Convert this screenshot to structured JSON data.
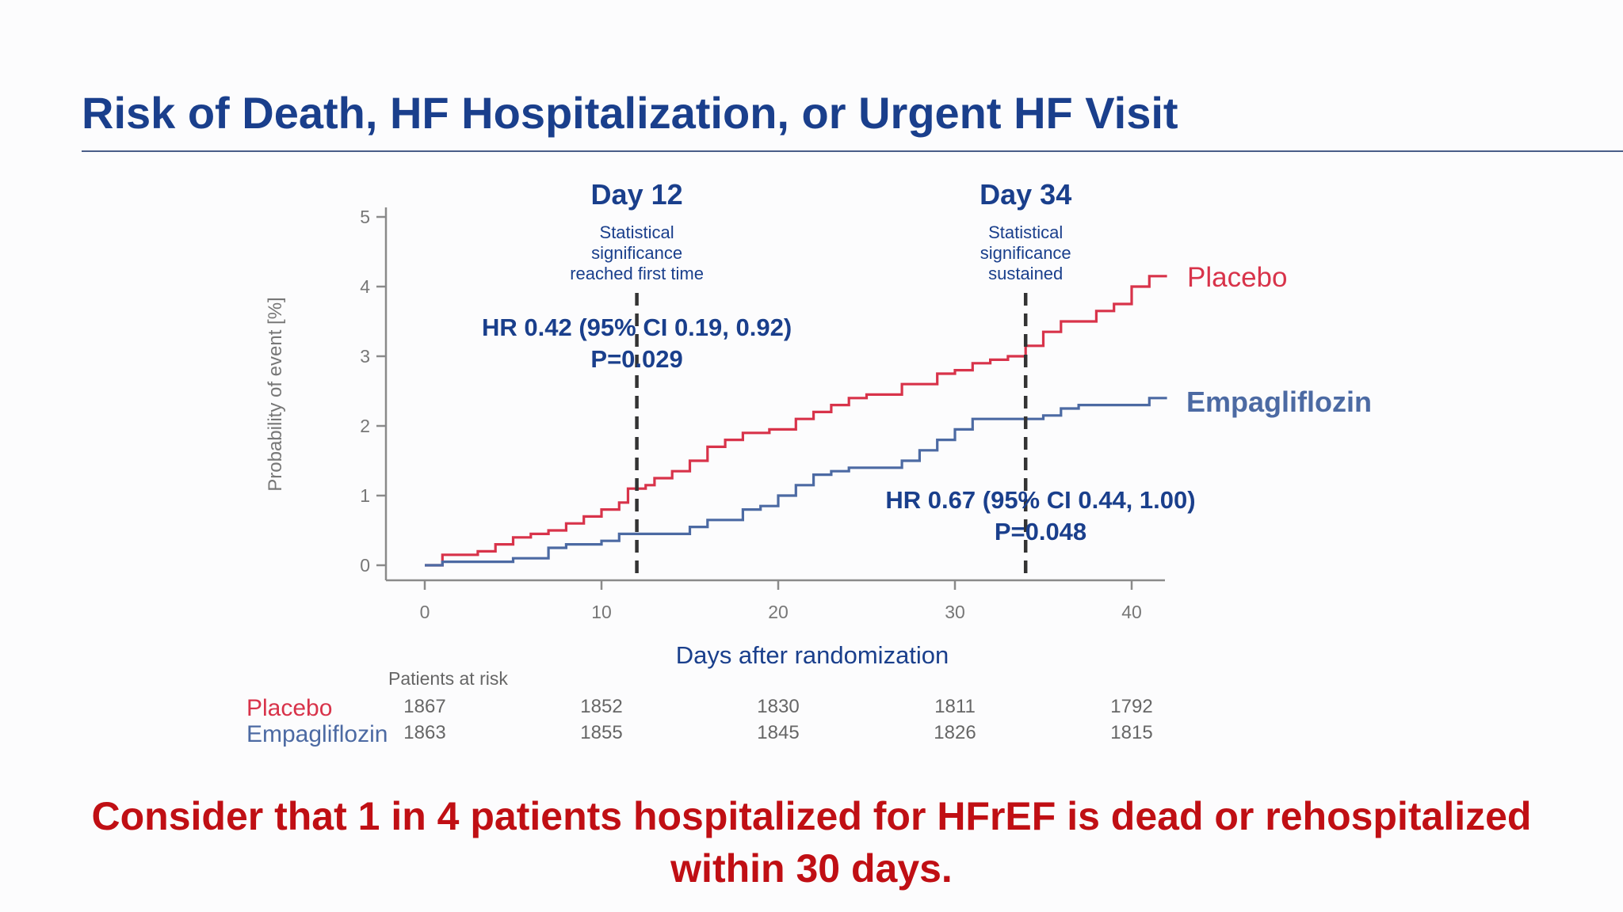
{
  "slide": {
    "title": "Risk of Death, HF Hospitalization, or Urgent HF Visit",
    "footer_line1": "Consider that 1 in 4 patients hospitalized for HFrEF is dead or rehospitalized",
    "footer_line2": "within 30 days."
  },
  "colors": {
    "title": "#1a3f8c",
    "placebo": "#d8334a",
    "empagliflozin": "#4c6aa3",
    "annotation": "#1a3f8c",
    "footer": "#c00f14",
    "axis": "#8a8a8a"
  },
  "chart_data": {
    "type": "line",
    "step": true,
    "xlabel": "Days after randomization",
    "ylabel": "Probability of event [%]",
    "xlim": [
      -2,
      42
    ],
    "ylim": [
      -0.2,
      5
    ],
    "xticks": [
      0,
      10,
      20,
      30,
      40
    ],
    "yticks": [
      0,
      1,
      2,
      3,
      4,
      5
    ],
    "grid": false,
    "series": [
      {
        "name": "Placebo",
        "color_key": "placebo",
        "points": [
          [
            0,
            0
          ],
          [
            1,
            0.15
          ],
          [
            3,
            0.2
          ],
          [
            4,
            0.3
          ],
          [
            5,
            0.4
          ],
          [
            6,
            0.45
          ],
          [
            7,
            0.5
          ],
          [
            8,
            0.6
          ],
          [
            9,
            0.7
          ],
          [
            10,
            0.8
          ],
          [
            11,
            0.9
          ],
          [
            11.5,
            1.1
          ],
          [
            12.5,
            1.15
          ],
          [
            13,
            1.25
          ],
          [
            14,
            1.35
          ],
          [
            15,
            1.5
          ],
          [
            16,
            1.7
          ],
          [
            17,
            1.8
          ],
          [
            18,
            1.9
          ],
          [
            19.5,
            1.95
          ],
          [
            21,
            2.1
          ],
          [
            22,
            2.2
          ],
          [
            23,
            2.3
          ],
          [
            24,
            2.4
          ],
          [
            25,
            2.45
          ],
          [
            27,
            2.6
          ],
          [
            29,
            2.75
          ],
          [
            30,
            2.8
          ],
          [
            31,
            2.9
          ],
          [
            32,
            2.95
          ],
          [
            33,
            3.0
          ],
          [
            34,
            3.15
          ],
          [
            35,
            3.35
          ],
          [
            36,
            3.5
          ],
          [
            38,
            3.65
          ],
          [
            39,
            3.75
          ],
          [
            40,
            4.0
          ],
          [
            41,
            4.15
          ],
          [
            42,
            4.15
          ]
        ]
      },
      {
        "name": "Empagliflozin",
        "color_key": "empagliflozin",
        "points": [
          [
            0,
            0
          ],
          [
            1,
            0.05
          ],
          [
            5,
            0.1
          ],
          [
            7,
            0.25
          ],
          [
            8,
            0.3
          ],
          [
            10,
            0.35
          ],
          [
            11,
            0.45
          ],
          [
            15,
            0.55
          ],
          [
            16,
            0.65
          ],
          [
            18,
            0.8
          ],
          [
            19,
            0.85
          ],
          [
            20,
            1.0
          ],
          [
            21,
            1.15
          ],
          [
            22,
            1.3
          ],
          [
            23,
            1.35
          ],
          [
            24,
            1.4
          ],
          [
            27,
            1.5
          ],
          [
            28,
            1.65
          ],
          [
            29,
            1.8
          ],
          [
            30,
            1.95
          ],
          [
            31,
            2.1
          ],
          [
            35,
            2.15
          ],
          [
            36,
            2.25
          ],
          [
            37,
            2.3
          ],
          [
            41,
            2.4
          ],
          [
            42,
            2.4
          ]
        ]
      }
    ],
    "series_labels": {
      "placebo": "Placebo",
      "empagliflozin": "Empagliflozin"
    },
    "reference_lines": [
      {
        "x": 12,
        "heading": "Day 12",
        "note_lines": [
          "Statistical",
          "significance",
          "reached first time"
        ],
        "hr_line": "HR 0.42 (95% CI 0.19, 0.92)",
        "p_line": "P=0.029"
      },
      {
        "x": 34,
        "heading": "Day 34",
        "note_lines": [
          "Statistical",
          "significance",
          "sustained"
        ],
        "hr_line": "HR 0.67 (95% CI 0.44, 1.00)",
        "p_line": "P=0.048"
      }
    ],
    "risk_table": {
      "header": "Patients at risk",
      "days": [
        0,
        10,
        20,
        30,
        40
      ],
      "rows": [
        {
          "label": "Placebo",
          "color_key": "placebo",
          "values": [
            "1867",
            "1852",
            "1830",
            "1811",
            "1792"
          ]
        },
        {
          "label": "Empagliflozin",
          "color_key": "empagliflozin",
          "values": [
            "1863",
            "1855",
            "1845",
            "1826",
            "1815"
          ]
        }
      ]
    }
  }
}
